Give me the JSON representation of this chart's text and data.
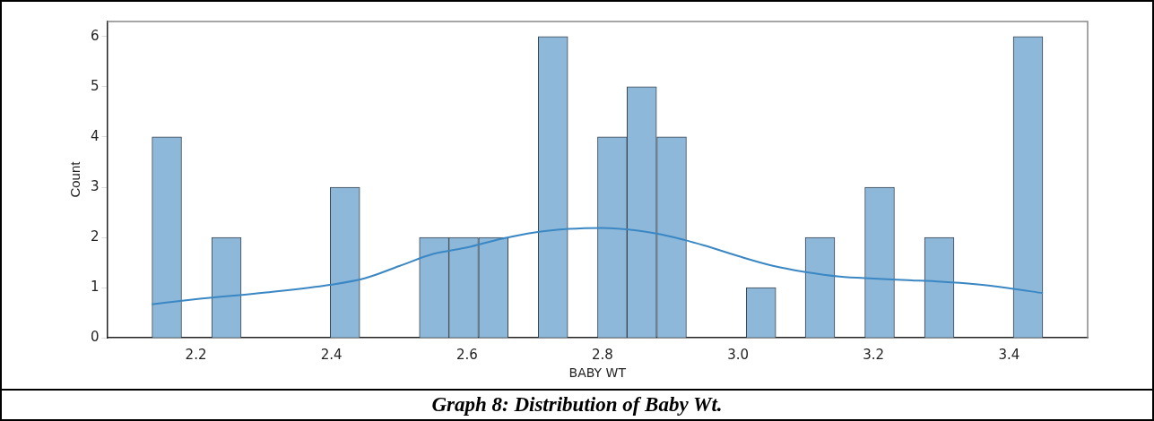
{
  "chart_data": {
    "type": "histogram",
    "title": "Graph 8: Distribution of Baby Wt.",
    "xlabel": "BABY WT",
    "ylabel": "Count",
    "bins": [
      2.135,
      2.179,
      2.223,
      2.267,
      2.398,
      2.442,
      2.53,
      2.573,
      2.617,
      2.661,
      2.705,
      2.749,
      2.793,
      2.836,
      2.88,
      2.924,
      3.012,
      3.056,
      3.099,
      3.143,
      3.187,
      3.231,
      3.275,
      3.319,
      3.406,
      3.45
    ],
    "values": [
      4,
      0,
      2,
      0,
      3,
      0,
      2,
      2,
      2,
      0,
      6,
      0,
      4,
      5,
      4,
      0,
      1,
      0,
      2,
      0,
      3,
      0,
      2,
      0,
      6
    ],
    "color": "#8db8da",
    "series": [
      {
        "type": "line",
        "color": "#3a87c4",
        "x": [
          2.135,
          2.2,
          2.3,
          2.4,
          2.45,
          2.5,
          2.55,
          2.6,
          2.65,
          2.7,
          2.75,
          2.8,
          2.85,
          2.9,
          2.95,
          3.0,
          3.05,
          3.1,
          3.15,
          3.2,
          3.25,
          3.3,
          3.35,
          3.4,
          3.45
        ],
        "values": [
          0.67,
          0.77,
          0.9,
          1.06,
          1.19,
          1.43,
          1.67,
          1.8,
          1.97,
          2.1,
          2.17,
          2.19,
          2.14,
          2.02,
          1.84,
          1.63,
          1.44,
          1.31,
          1.22,
          1.18,
          1.15,
          1.12,
          1.07,
          0.99,
          0.89
        ]
      }
    ],
    "xlim": [
      2.069,
      3.516
    ],
    "ylim": [
      0,
      6.3
    ],
    "xticks": [
      2.2,
      2.4,
      2.6,
      2.8,
      {
        "value": 3,
        "label": "3.0"
      },
      3.2,
      3.4
    ],
    "yticks": [
      0,
      1,
      2,
      3,
      4,
      5,
      6
    ],
    "grid": false,
    "legend": false
  }
}
